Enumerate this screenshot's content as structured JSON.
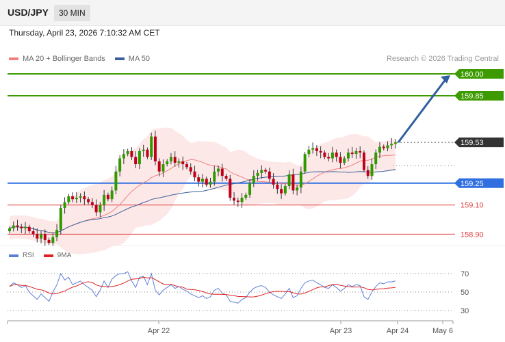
{
  "header": {
    "pair": "USD/JPY",
    "timeframe": "30 MIN"
  },
  "datetime": "Thursday, April 23, 2026 7:10:32 AM CET",
  "legend": {
    "ma20_label": "MA 20 + Bollinger Bands",
    "ma50_label": "MA 50",
    "ma20_color": "#f08080",
    "ma50_color": "#3a5f9a"
  },
  "copyright": "Research © 2026 Trading Central",
  "rsi_legend": {
    "rsi_label": "RSI",
    "ma_label": "9MA",
    "rsi_color": "#5b7fd6",
    "ma_color": "#e02020"
  },
  "chart_data": [
    {
      "type": "candlestick",
      "ylim": [
        158.8,
        160.15
      ],
      "x_tick_labels": [
        "Apr 22",
        "Apr 23",
        "Apr 24",
        "May 6"
      ],
      "current_price": {
        "label": "159.53",
        "value": 159.53,
        "color": "#333333"
      },
      "levels": [
        {
          "label": "160.00",
          "value": 160.0,
          "color": "#3d9a00",
          "style": "box"
        },
        {
          "label": "159.85",
          "value": 159.85,
          "color": "#3d9a00",
          "style": "box"
        },
        {
          "label": "159.25",
          "value": 159.25,
          "color": "#2f6fe0",
          "style": "box"
        },
        {
          "label": "159.10",
          "value": 159.1,
          "color": "#e04040",
          "style": "text"
        },
        {
          "label": "158.90",
          "value": 158.9,
          "color": "#e04040",
          "style": "text"
        }
      ],
      "forecast_arrow": {
        "from": 159.53,
        "to": 160.0,
        "color": "#2f5f9f"
      },
      "close": [
        158.94,
        158.96,
        158.95,
        158.94,
        158.95,
        158.92,
        158.9,
        158.87,
        158.9,
        158.86,
        158.84,
        158.88,
        158.93,
        159.08,
        159.12,
        159.16,
        159.14,
        159.15,
        159.16,
        159.14,
        159.12,
        159.1,
        159.05,
        159.1,
        159.17,
        159.14,
        159.2,
        159.33,
        159.42,
        159.45,
        159.47,
        159.43,
        159.38,
        159.47,
        159.48,
        159.43,
        159.57,
        159.4,
        159.33,
        159.38,
        159.4,
        159.43,
        159.39,
        159.4,
        159.38,
        159.36,
        159.33,
        159.29,
        159.26,
        159.28,
        159.24,
        159.26,
        159.33,
        159.35,
        159.3,
        159.28,
        159.15,
        159.13,
        159.12,
        159.15,
        159.17,
        159.25,
        159.3,
        159.32,
        159.34,
        159.33,
        159.28,
        159.24,
        159.21,
        159.18,
        159.23,
        159.31,
        159.2,
        159.22,
        159.33,
        159.45,
        159.48,
        159.49,
        159.47,
        159.46,
        159.43,
        159.42,
        159.46,
        159.43,
        159.39,
        159.42,
        159.46,
        159.45,
        159.47,
        159.46,
        159.34,
        159.3,
        159.38,
        159.46,
        159.5,
        159.49,
        159.51,
        159.52,
        159.53
      ],
      "series": [
        {
          "name": "MA 20 + Bollinger Bands"
        },
        {
          "name": "MA 50"
        }
      ]
    },
    {
      "type": "line",
      "ylim": [
        25,
        75
      ],
      "y_ticks": [
        70,
        50,
        30
      ],
      "rsi": [
        56,
        60,
        58,
        55,
        57,
        50,
        46,
        42,
        48,
        44,
        40,
        50,
        58,
        70,
        63,
        66,
        58,
        60,
        62,
        58,
        55,
        52,
        45,
        52,
        62,
        55,
        64,
        68,
        70,
        70,
        72,
        62,
        55,
        66,
        67,
        58,
        70,
        52,
        47,
        52,
        55,
        58,
        54,
        56,
        53,
        51,
        48,
        46,
        44,
        46,
        43,
        45,
        52,
        54,
        49,
        47,
        40,
        39,
        38,
        42,
        44,
        50,
        54,
        56,
        57,
        55,
        50,
        47,
        45,
        43,
        48,
        54,
        44,
        46,
        54,
        60,
        62,
        63,
        60,
        58,
        55,
        54,
        58,
        55,
        51,
        54,
        58,
        56,
        58,
        57,
        45,
        42,
        50,
        56,
        60,
        59,
        61,
        61,
        62
      ]
    }
  ]
}
